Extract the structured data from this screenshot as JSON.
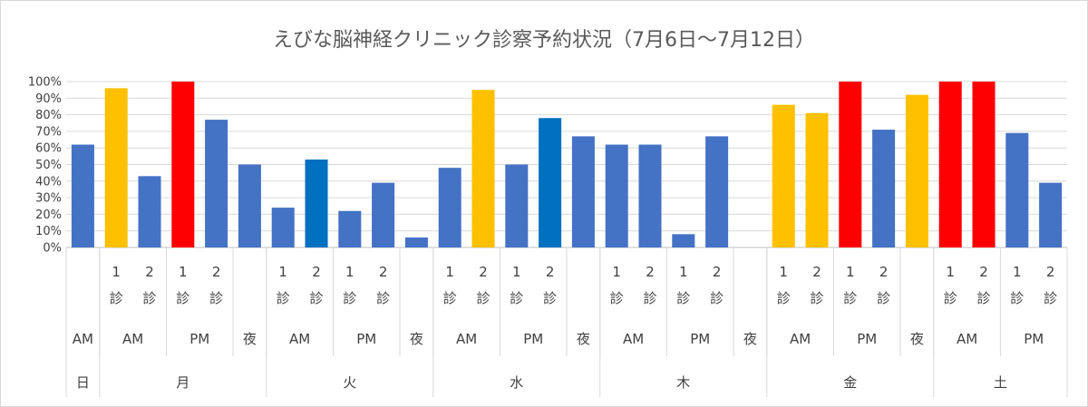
{
  "chart_data": {
    "type": "bar",
    "title": "えびな脳神経クリニック診察予約状況（7月6日〜7月12日）",
    "xlabel": "",
    "ylabel": "",
    "ylim": [
      0,
      1
    ],
    "y_ticks": [
      "0%",
      "10%",
      "20%",
      "30%",
      "40%",
      "50%",
      "60%",
      "70%",
      "80%",
      "90%",
      "100%"
    ],
    "grid": true,
    "legend": "none",
    "colors": {
      "normal": "#4472C4",
      "normal_alt": "#0070C0",
      "busy": "#FFC000",
      "full": "#FF0000"
    },
    "category_labels": {
      "session1": "1\n診",
      "session2": "2\n診"
    },
    "bars": [
      {
        "day": "日",
        "period": "AM",
        "session": "",
        "value": 0.62,
        "color": "normal"
      },
      {
        "day": "月",
        "period": "AM",
        "session": "1\n診",
        "value": 0.96,
        "color": "busy"
      },
      {
        "day": "月",
        "period": "AM",
        "session": "2\n診",
        "value": 0.43,
        "color": "normal"
      },
      {
        "day": "月",
        "period": "PM",
        "session": "1\n診",
        "value": 1.0,
        "color": "full"
      },
      {
        "day": "月",
        "period": "PM",
        "session": "2\n診",
        "value": 0.77,
        "color": "normal"
      },
      {
        "day": "月",
        "period": "夜",
        "session": "",
        "value": 0.5,
        "color": "normal"
      },
      {
        "day": "火",
        "period": "AM",
        "session": "1\n診",
        "value": 0.24,
        "color": "normal"
      },
      {
        "day": "火",
        "period": "AM",
        "session": "2\n診",
        "value": 0.53,
        "color": "normal_alt"
      },
      {
        "day": "火",
        "period": "PM",
        "session": "1\n診",
        "value": 0.22,
        "color": "normal"
      },
      {
        "day": "火",
        "period": "PM",
        "session": "2\n診",
        "value": 0.39,
        "color": "normal"
      },
      {
        "day": "火",
        "period": "夜",
        "session": "",
        "value": 0.06,
        "color": "normal"
      },
      {
        "day": "水",
        "period": "AM",
        "session": "1\n診",
        "value": 0.48,
        "color": "normal"
      },
      {
        "day": "水",
        "period": "AM",
        "session": "2\n診",
        "value": 0.95,
        "color": "busy"
      },
      {
        "day": "水",
        "period": "PM",
        "session": "1\n診",
        "value": 0.5,
        "color": "normal"
      },
      {
        "day": "水",
        "period": "PM",
        "session": "2\n診",
        "value": 0.78,
        "color": "normal_alt"
      },
      {
        "day": "水",
        "period": "夜",
        "session": "",
        "value": 0.67,
        "color": "normal"
      },
      {
        "day": "木",
        "period": "AM",
        "session": "1\n診",
        "value": 0.62,
        "color": "normal"
      },
      {
        "day": "木",
        "period": "AM",
        "session": "2\n診",
        "value": 0.62,
        "color": "normal"
      },
      {
        "day": "木",
        "period": "PM",
        "session": "1\n診",
        "value": 0.08,
        "color": "normal"
      },
      {
        "day": "木",
        "period": "PM",
        "session": "2\n診",
        "value": 0.67,
        "color": "normal"
      },
      {
        "day": "木",
        "period": "夜",
        "session": "",
        "value": 0.0,
        "color": "normal"
      },
      {
        "day": "金",
        "period": "AM",
        "session": "1\n診",
        "value": 0.86,
        "color": "busy"
      },
      {
        "day": "金",
        "period": "AM",
        "session": "2\n診",
        "value": 0.81,
        "color": "busy"
      },
      {
        "day": "金",
        "period": "PM",
        "session": "1\n診",
        "value": 1.0,
        "color": "full"
      },
      {
        "day": "金",
        "period": "PM",
        "session": "2\n診",
        "value": 0.71,
        "color": "normal"
      },
      {
        "day": "金",
        "period": "夜",
        "session": "",
        "value": 0.92,
        "color": "busy"
      },
      {
        "day": "土",
        "period": "AM",
        "session": "1\n診",
        "value": 1.0,
        "color": "full"
      },
      {
        "day": "土",
        "period": "AM",
        "session": "2\n診",
        "value": 1.0,
        "color": "full"
      },
      {
        "day": "土",
        "period": "PM",
        "session": "1\n診",
        "value": 0.69,
        "color": "normal"
      },
      {
        "day": "土",
        "period": "PM",
        "session": "2\n診",
        "value": 0.39,
        "color": "normal"
      }
    ]
  }
}
